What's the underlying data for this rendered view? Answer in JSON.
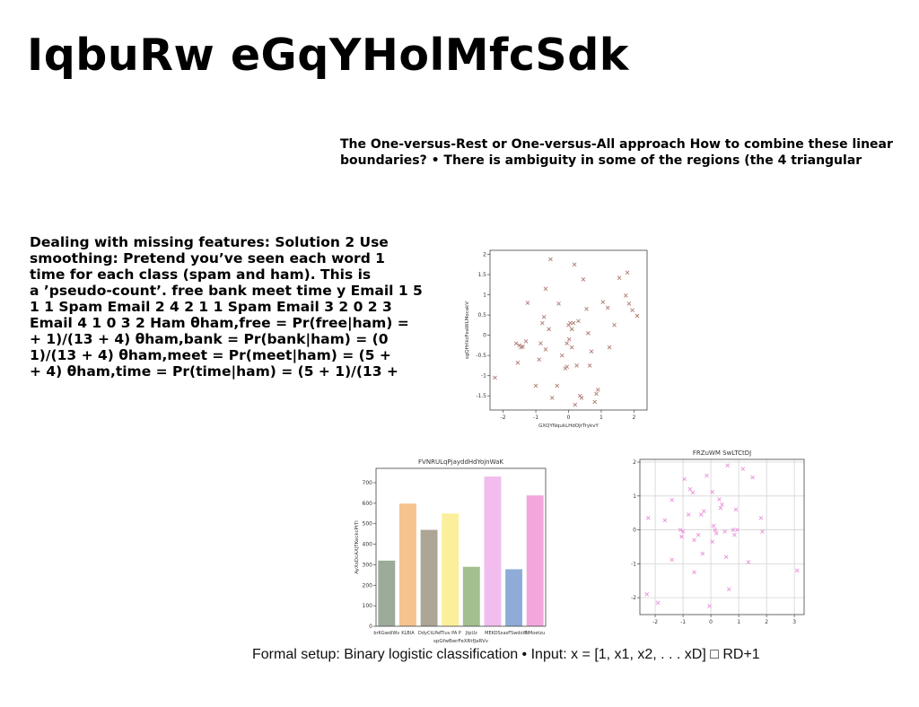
{
  "title": "IqbuRw eGqYHolMfcSdk",
  "text_top": [
    "The One-versus-Rest or One-versus-All approach How to combine these linear",
    "boundaries? • There is ambiguity in some of the regions (the 4 triangular"
  ],
  "text_left": [
    "Dealing with missing features: Solution 2 Use",
    "smoothing: Pretend you’ve seen each word 1",
    "time for each class (spam and ham). This is",
    "a ’pseudo-count’. free bank meet time y Email 1 5",
    "1 1 Spam Email 2 4 2 1 1 Spam Email 3 2 0 2 3",
    "Email 4 1 0 3 2 Ham θham,free = Pr(free|ham) =",
    "+ 1)/(13 + 4) θham,bank = Pr(bank|ham) = (0",
    "1)/(13 + 4) θham,meet = Pr(meet|ham) = (5 +",
    "+ 4) θham,time = Pr(time|ham) = (5 + 1)/(13 +"
  ],
  "caption": "Formal setup: Binary logistic classification • Input: x = [1, x1, x2, . . . xD] □ RD+1",
  "chart_data": [
    {
      "type": "scatter",
      "title": "",
      "xlabel": "GXQYNqukLHdOJrTrykvY",
      "ylabel": "sgQHrIiizFeaWLMocakV",
      "xlim": [
        -2.4,
        2.4
      ],
      "ylim": [
        -1.85,
        2.1
      ],
      "xticks": [
        -2,
        -1,
        0,
        1,
        2
      ],
      "yticks": [
        -1.5,
        -1.0,
        -0.5,
        0.0,
        0.5,
        1.0,
        1.5,
        2.0
      ],
      "grid": false,
      "marker": "x",
      "color": "#b07a72",
      "points": [
        [
          -2.25,
          -1.05
        ],
        [
          -1.6,
          -0.2
        ],
        [
          -1.55,
          -0.68
        ],
        [
          -1.5,
          -0.25
        ],
        [
          -1.45,
          -0.3
        ],
        [
          -1.4,
          -0.28
        ],
        [
          -1.3,
          -0.15
        ],
        [
          -1.25,
          0.8
        ],
        [
          -1.0,
          -1.25
        ],
        [
          -0.9,
          -0.6
        ],
        [
          -0.85,
          -0.2
        ],
        [
          -0.8,
          0.3
        ],
        [
          -0.75,
          0.45
        ],
        [
          -0.7,
          1.15
        ],
        [
          -0.7,
          -0.35
        ],
        [
          -0.6,
          0.15
        ],
        [
          -0.5,
          -1.55
        ],
        [
          -0.55,
          1.88
        ],
        [
          -0.35,
          -1.25
        ],
        [
          -0.3,
          0.78
        ],
        [
          -0.2,
          -0.5
        ],
        [
          -0.1,
          -0.82
        ],
        [
          -0.05,
          -0.78
        ],
        [
          -0.05,
          -0.2
        ],
        [
          0.0,
          0.25
        ],
        [
          0.02,
          -0.1
        ],
        [
          0.05,
          0.3
        ],
        [
          0.1,
          0.15
        ],
        [
          0.15,
          0.3
        ],
        [
          0.18,
          1.75
        ],
        [
          0.2,
          -1.72
        ],
        [
          0.25,
          -0.75
        ],
        [
          0.3,
          0.35
        ],
        [
          0.35,
          -1.5
        ],
        [
          0.4,
          -1.55
        ],
        [
          0.45,
          1.38
        ],
        [
          0.55,
          0.65
        ],
        [
          0.6,
          0.05
        ],
        [
          0.65,
          -0.75
        ],
        [
          0.7,
          -0.4
        ],
        [
          0.8,
          -1.65
        ],
        [
          0.85,
          -1.45
        ],
        [
          0.9,
          -1.35
        ],
        [
          1.05,
          0.82
        ],
        [
          1.2,
          0.68
        ],
        [
          1.25,
          -0.3
        ],
        [
          1.4,
          0.25
        ],
        [
          1.55,
          1.42
        ],
        [
          1.75,
          0.98
        ],
        [
          1.8,
          1.55
        ],
        [
          1.85,
          0.78
        ],
        [
          1.95,
          0.62
        ],
        [
          2.1,
          0.48
        ],
        [
          0.1,
          -0.3
        ]
      ]
    },
    {
      "type": "bar",
      "title": "FVNRULqPjayddHdYojnWaK",
      "xlabel": "spGfwBwrFeXRtfJaRVv",
      "ylabel": "AyXxDcAXjTKeckcPtTi",
      "ylim": [
        0,
        770
      ],
      "yticks": [
        0,
        100,
        200,
        300,
        400,
        500,
        600,
        700
      ],
      "categories": [
        "brKGwdiWv",
        "KLBIA",
        "DdyCtLPe",
        "ITIuv PA P",
        "JtpUz",
        "MEKOS",
        "xasFSwdoW",
        "NMoetzu"
      ],
      "values": [
        320,
        598,
        470,
        550,
        290,
        730,
        278,
        638
      ],
      "colors": [
        "#9cab9a",
        "#f6c28e",
        "#ada595",
        "#fbef9b",
        "#a4bf8f",
        "#f2bcef",
        "#8facd8",
        "#f2a6dc"
      ]
    },
    {
      "type": "scatter",
      "title": "FRZuWM SwLTCtDJ",
      "xlabel": "",
      "ylabel": "",
      "xlim": [
        -2.55,
        3.35
      ],
      "ylim": [
        -2.5,
        2.08
      ],
      "xticks": [
        -2,
        -1,
        0,
        1,
        2,
        3
      ],
      "yticks": [
        -2,
        -1,
        0,
        1,
        2
      ],
      "grid": true,
      "marker": "x",
      "color": "#ea8fdc",
      "points": [
        [
          -2.3,
          -1.9
        ],
        [
          -2.25,
          0.35
        ],
        [
          -1.9,
          -2.15
        ],
        [
          -1.65,
          0.28
        ],
        [
          -1.4,
          0.88
        ],
        [
          -1.4,
          -0.88
        ],
        [
          -1.1,
          0.0
        ],
        [
          -1.05,
          -0.2
        ],
        [
          -1.0,
          -0.05
        ],
        [
          -0.95,
          1.5
        ],
        [
          -0.8,
          0.45
        ],
        [
          -0.75,
          1.2
        ],
        [
          -0.65,
          1.1
        ],
        [
          -0.6,
          -1.25
        ],
        [
          -0.6,
          -0.3
        ],
        [
          -0.45,
          -0.15
        ],
        [
          -0.35,
          0.45
        ],
        [
          -0.3,
          -0.7
        ],
        [
          -0.25,
          0.55
        ],
        [
          -0.15,
          1.6
        ],
        [
          -0.05,
          -2.25
        ],
        [
          0.05,
          1.12
        ],
        [
          0.05,
          -0.35
        ],
        [
          0.1,
          0.12
        ],
        [
          0.15,
          0.0
        ],
        [
          0.2,
          -0.1
        ],
        [
          0.3,
          0.9
        ],
        [
          0.35,
          0.65
        ],
        [
          0.4,
          0.75
        ],
        [
          0.5,
          -0.05
        ],
        [
          0.55,
          -0.8
        ],
        [
          0.6,
          1.9
        ],
        [
          0.65,
          -1.75
        ],
        [
          0.8,
          0.0
        ],
        [
          0.85,
          -0.15
        ],
        [
          0.9,
          0.6
        ],
        [
          0.95,
          0.0
        ],
        [
          1.15,
          1.8
        ],
        [
          1.35,
          -0.95
        ],
        [
          1.5,
          1.55
        ],
        [
          1.8,
          0.35
        ],
        [
          1.85,
          -0.05
        ],
        [
          3.1,
          -1.2
        ]
      ]
    }
  ]
}
